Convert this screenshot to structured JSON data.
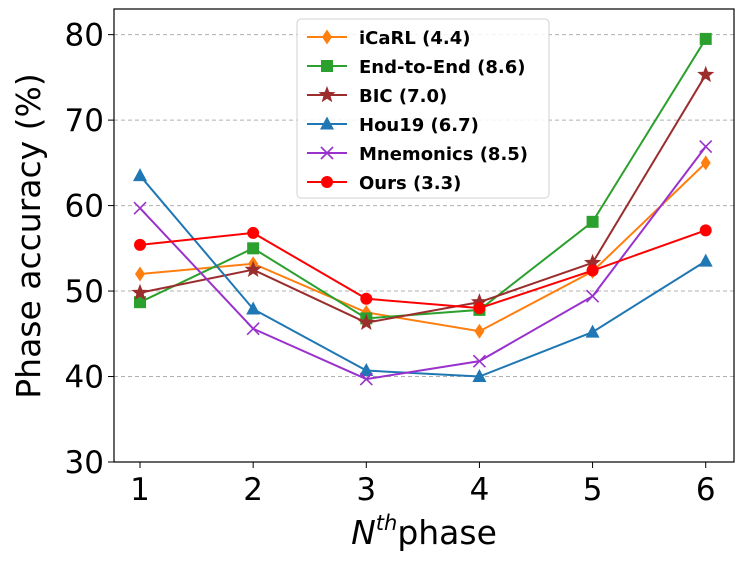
{
  "chart_data": {
    "type": "line",
    "title": "",
    "xlabel": "phase",
    "xlabel_base": "N",
    "xlabel_sup": "th",
    "ylabel": "Phase accuracy (%)",
    "x": [
      1,
      2,
      3,
      4,
      5,
      6
    ],
    "x_tick_labels": [
      "1",
      "2",
      "3",
      "4",
      "5",
      "6"
    ],
    "xlim": [
      0.77,
      6.25
    ],
    "ylim": [
      30,
      83
    ],
    "y_ticks": [
      30,
      40,
      50,
      60,
      70,
      80
    ],
    "y_tick_labels": [
      "30",
      "40",
      "50",
      "60",
      "70",
      "80"
    ],
    "grid": "y-dashed",
    "legend_position": "top-center",
    "series": [
      {
        "name": "iCaRL (4.4)",
        "color": "#ff7f0e",
        "marker": "thin_diamond",
        "values": [
          52.0,
          53.2,
          47.5,
          45.3,
          52.3,
          65.0
        ]
      },
      {
        "name": "End-to-End (8.6)",
        "color": "#2ca02c",
        "marker": "square",
        "values": [
          48.7,
          55.0,
          46.8,
          47.8,
          58.1,
          79.5
        ]
      },
      {
        "name": "BIC (7.0)",
        "color": "#9b2d2d",
        "marker": "star",
        "values": [
          49.8,
          52.5,
          46.3,
          48.7,
          53.3,
          75.3
        ]
      },
      {
        "name": "Hou19 (6.7)",
        "color": "#1f77b4",
        "marker": "triangle",
        "values": [
          63.5,
          47.9,
          40.7,
          40.0,
          45.2,
          53.5
        ]
      },
      {
        "name": "Mnemonics (8.5)",
        "color": "#9932cc",
        "marker": "x",
        "values": [
          59.7,
          45.6,
          39.7,
          41.8,
          49.4,
          66.9
        ]
      },
      {
        "name": "Ours (3.3)",
        "color": "#ff0000",
        "marker": "circle",
        "values": [
          55.4,
          56.8,
          49.1,
          48.0,
          52.4,
          57.1
        ]
      }
    ]
  }
}
